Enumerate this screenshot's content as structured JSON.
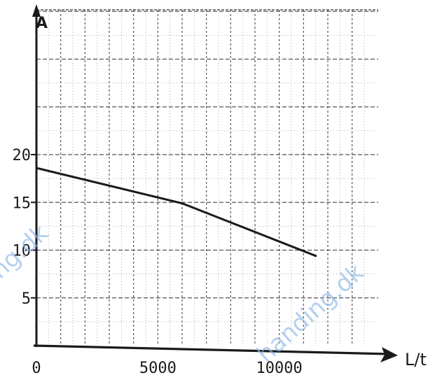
{
  "chart_data": {
    "type": "line",
    "title": "",
    "xlabel": "L/t",
    "ylabel": "A",
    "xlim": [
      0,
      13500
    ],
    "ylim": [
      0,
      35
    ],
    "x_ticks": [
      0,
      5000,
      10000
    ],
    "x_tick_labels": [
      "0",
      "5000",
      "10000"
    ],
    "y_ticks": [
      5,
      10,
      15,
      20
    ],
    "y_tick_labels": [
      "5",
      "10",
      "15",
      "20"
    ],
    "grid": true,
    "series": [
      {
        "name": "",
        "x": [
          0,
          6000,
          11500
        ],
        "y": [
          18.6,
          14.9,
          9.4
        ]
      }
    ]
  },
  "watermarks": [
    "ng.dk",
    "handing.dk"
  ],
  "colors": {
    "ink": "#1a1a1a",
    "grid": "#555555",
    "watermark": "#8fb6e8"
  }
}
